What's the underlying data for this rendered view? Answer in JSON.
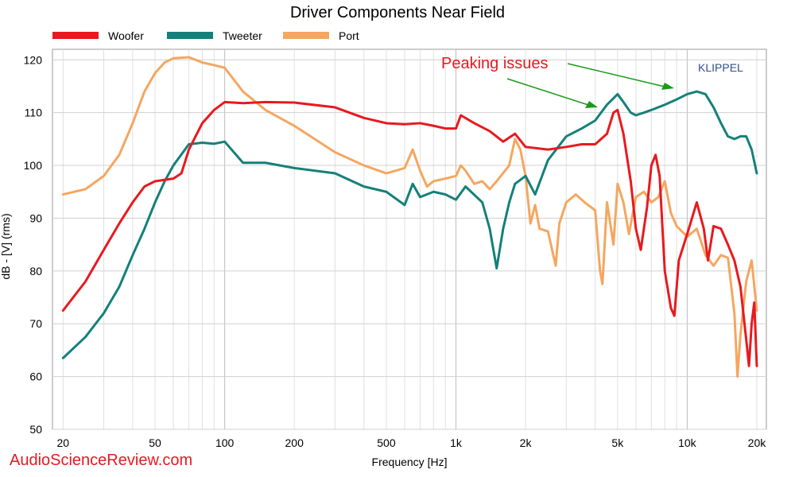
{
  "chart_data": {
    "type": "line",
    "title": "Driver Components Near Field",
    "xlabel": "Frequency [Hz]",
    "ylabel": "dB - [V] (rms)",
    "x_scale": "log",
    "xlim": [
      18,
      22000
    ],
    "ylim": [
      50,
      122
    ],
    "grid": true,
    "legend_position": "top-left",
    "x_ticks": [
      {
        "value": 20,
        "label": "20"
      },
      {
        "value": 50,
        "label": "50"
      },
      {
        "value": 100,
        "label": "100"
      },
      {
        "value": 200,
        "label": "200"
      },
      {
        "value": 500,
        "label": "500"
      },
      {
        "value": 1000,
        "label": "1k"
      },
      {
        "value": 2000,
        "label": "2k"
      },
      {
        "value": 5000,
        "label": "5k"
      },
      {
        "value": 10000,
        "label": "10k"
      },
      {
        "value": 20000,
        "label": "20k"
      }
    ],
    "y_ticks": [
      50,
      60,
      70,
      80,
      90,
      100,
      110,
      120
    ],
    "series": [
      {
        "name": "Woofer",
        "color": "#e8191f",
        "points": [
          [
            20,
            72.5
          ],
          [
            25,
            78
          ],
          [
            30,
            84
          ],
          [
            35,
            89
          ],
          [
            40,
            93
          ],
          [
            45,
            96
          ],
          [
            50,
            97
          ],
          [
            60,
            97.5
          ],
          [
            65,
            98.5
          ],
          [
            70,
            103
          ],
          [
            80,
            108
          ],
          [
            90,
            110.5
          ],
          [
            100,
            112
          ],
          [
            120,
            111.8
          ],
          [
            150,
            112
          ],
          [
            200,
            111.9
          ],
          [
            300,
            111
          ],
          [
            400,
            109
          ],
          [
            500,
            108
          ],
          [
            600,
            107.8
          ],
          [
            700,
            108
          ],
          [
            800,
            107.5
          ],
          [
            900,
            107
          ],
          [
            1000,
            107
          ],
          [
            1050,
            109.5
          ],
          [
            1200,
            108
          ],
          [
            1400,
            106.5
          ],
          [
            1600,
            104.5
          ],
          [
            1800,
            106
          ],
          [
            2000,
            103.5
          ],
          [
            2500,
            103
          ],
          [
            3000,
            103.5
          ],
          [
            3500,
            104
          ],
          [
            4000,
            104
          ],
          [
            4500,
            106
          ],
          [
            4800,
            110
          ],
          [
            5000,
            110.5
          ],
          [
            5300,
            106
          ],
          [
            5700,
            97
          ],
          [
            6000,
            88
          ],
          [
            6300,
            84
          ],
          [
            6700,
            92
          ],
          [
            7000,
            100
          ],
          [
            7300,
            102
          ],
          [
            7600,
            98
          ],
          [
            8000,
            80
          ],
          [
            8500,
            73
          ],
          [
            8800,
            71.5
          ],
          [
            9200,
            82
          ],
          [
            10000,
            87
          ],
          [
            11000,
            93
          ],
          [
            11800,
            88
          ],
          [
            12300,
            82
          ],
          [
            13000,
            88.5
          ],
          [
            14000,
            88
          ],
          [
            15000,
            85
          ],
          [
            16000,
            82
          ],
          [
            17000,
            77
          ],
          [
            18000,
            67
          ],
          [
            18500,
            62
          ],
          [
            19000,
            70
          ],
          [
            19500,
            74
          ],
          [
            20000,
            62
          ]
        ]
      },
      {
        "name": "Tweeter",
        "color": "#14807a",
        "points": [
          [
            20,
            63.5
          ],
          [
            25,
            67.5
          ],
          [
            30,
            72
          ],
          [
            35,
            77
          ],
          [
            40,
            83
          ],
          [
            45,
            88
          ],
          [
            50,
            93
          ],
          [
            55,
            97
          ],
          [
            60,
            100
          ],
          [
            70,
            104
          ],
          [
            80,
            104.3
          ],
          [
            90,
            104.1
          ],
          [
            100,
            104.5
          ],
          [
            120,
            100.5
          ],
          [
            150,
            100.5
          ],
          [
            200,
            99.5
          ],
          [
            300,
            98.5
          ],
          [
            400,
            96
          ],
          [
            500,
            95
          ],
          [
            600,
            92.5
          ],
          [
            650,
            96.5
          ],
          [
            700,
            94
          ],
          [
            800,
            95
          ],
          [
            900,
            94.5
          ],
          [
            1000,
            93.5
          ],
          [
            1100,
            96
          ],
          [
            1300,
            93
          ],
          [
            1400,
            88
          ],
          [
            1500,
            80.5
          ],
          [
            1600,
            88
          ],
          [
            1700,
            93
          ],
          [
            1800,
            96.5
          ],
          [
            2000,
            98
          ],
          [
            2200,
            94.5
          ],
          [
            2500,
            101
          ],
          [
            3000,
            105.5
          ],
          [
            3500,
            107
          ],
          [
            4000,
            108.5
          ],
          [
            4500,
            111.5
          ],
          [
            5000,
            113.5
          ],
          [
            5300,
            112
          ],
          [
            5700,
            110
          ],
          [
            6000,
            109.5
          ],
          [
            6500,
            110
          ],
          [
            7000,
            110.5
          ],
          [
            8000,
            111.5
          ],
          [
            9000,
            112.5
          ],
          [
            10000,
            113.5
          ],
          [
            11000,
            114
          ],
          [
            12000,
            113.5
          ],
          [
            13000,
            111
          ],
          [
            14000,
            108
          ],
          [
            15000,
            105.5
          ],
          [
            16000,
            105
          ],
          [
            17000,
            105.5
          ],
          [
            18000,
            105.5
          ],
          [
            19000,
            103
          ],
          [
            20000,
            98.5
          ]
        ]
      },
      {
        "name": "Port",
        "color": "#f5a660",
        "points": [
          [
            20,
            94.5
          ],
          [
            25,
            95.5
          ],
          [
            30,
            98
          ],
          [
            35,
            102
          ],
          [
            40,
            108
          ],
          [
            45,
            114
          ],
          [
            50,
            117.5
          ],
          [
            55,
            119.5
          ],
          [
            60,
            120.3
          ],
          [
            70,
            120.5
          ],
          [
            80,
            119.5
          ],
          [
            90,
            119
          ],
          [
            100,
            118.5
          ],
          [
            120,
            114
          ],
          [
            150,
            110.5
          ],
          [
            200,
            107.5
          ],
          [
            300,
            102.5
          ],
          [
            400,
            100
          ],
          [
            500,
            98.5
          ],
          [
            600,
            99.5
          ],
          [
            650,
            103
          ],
          [
            700,
            99
          ],
          [
            750,
            96
          ],
          [
            800,
            97
          ],
          [
            900,
            97.5
          ],
          [
            1000,
            98
          ],
          [
            1050,
            100
          ],
          [
            1100,
            99
          ],
          [
            1200,
            96.5
          ],
          [
            1300,
            97
          ],
          [
            1400,
            95.5
          ],
          [
            1500,
            97
          ],
          [
            1700,
            100
          ],
          [
            1800,
            105
          ],
          [
            1900,
            103
          ],
          [
            2000,
            98
          ],
          [
            2100,
            89
          ],
          [
            2200,
            92.5
          ],
          [
            2300,
            88
          ],
          [
            2500,
            87.5
          ],
          [
            2700,
            81
          ],
          [
            2800,
            89
          ],
          [
            3000,
            93
          ],
          [
            3300,
            94.5
          ],
          [
            3600,
            93
          ],
          [
            4000,
            91.5
          ],
          [
            4200,
            80
          ],
          [
            4300,
            77.5
          ],
          [
            4500,
            93
          ],
          [
            4800,
            85
          ],
          [
            5000,
            96.5
          ],
          [
            5300,
            93
          ],
          [
            5600,
            87
          ],
          [
            6000,
            94
          ],
          [
            6500,
            95
          ],
          [
            7000,
            93
          ],
          [
            7500,
            94
          ],
          [
            8000,
            97
          ],
          [
            8500,
            91
          ],
          [
            9000,
            88.5
          ],
          [
            10000,
            86.5
          ],
          [
            11000,
            88
          ],
          [
            12000,
            83
          ],
          [
            13000,
            81
          ],
          [
            14000,
            83
          ],
          [
            15000,
            82.5
          ],
          [
            16000,
            72
          ],
          [
            16500,
            60
          ],
          [
            17000,
            68
          ],
          [
            18000,
            78
          ],
          [
            19000,
            82
          ],
          [
            20000,
            72.5
          ]
        ]
      }
    ],
    "annotations": [
      {
        "text": "Peaking issues",
        "color": "#e8191f"
      },
      {
        "text": "KLIPPEL",
        "color": "#2f4f8a"
      }
    ]
  },
  "watermark": "AudioScienceReview.com"
}
